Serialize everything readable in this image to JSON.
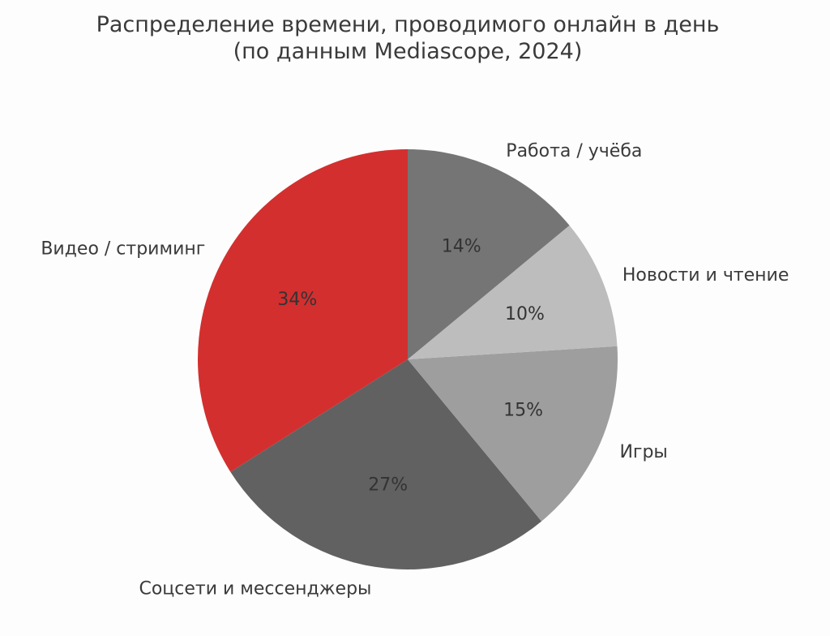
{
  "chart_data": {
    "type": "pie",
    "title": [
      "Распределение времени, проводимого онлайн в день",
      "(по данным Mediascope, 2024)"
    ],
    "start_angle": 90,
    "direction": "counterclockwise",
    "slices": [
      {
        "label": "Видео / стриминг",
        "value": 34,
        "pct_label": "34%",
        "color": "#d32f2f"
      },
      {
        "label": "Соцсети и мессенджеры",
        "value": 27,
        "pct_label": "27%",
        "color": "#616161"
      },
      {
        "label": "Игры",
        "value": 15,
        "pct_label": "15%",
        "color": "#9e9e9e"
      },
      {
        "label": "Новости и чтение",
        "value": 10,
        "pct_label": "10%",
        "color": "#bdbdbd"
      },
      {
        "label": "Работа / учёба",
        "value": 14,
        "pct_label": "14%",
        "color": "#757575"
      }
    ]
  }
}
